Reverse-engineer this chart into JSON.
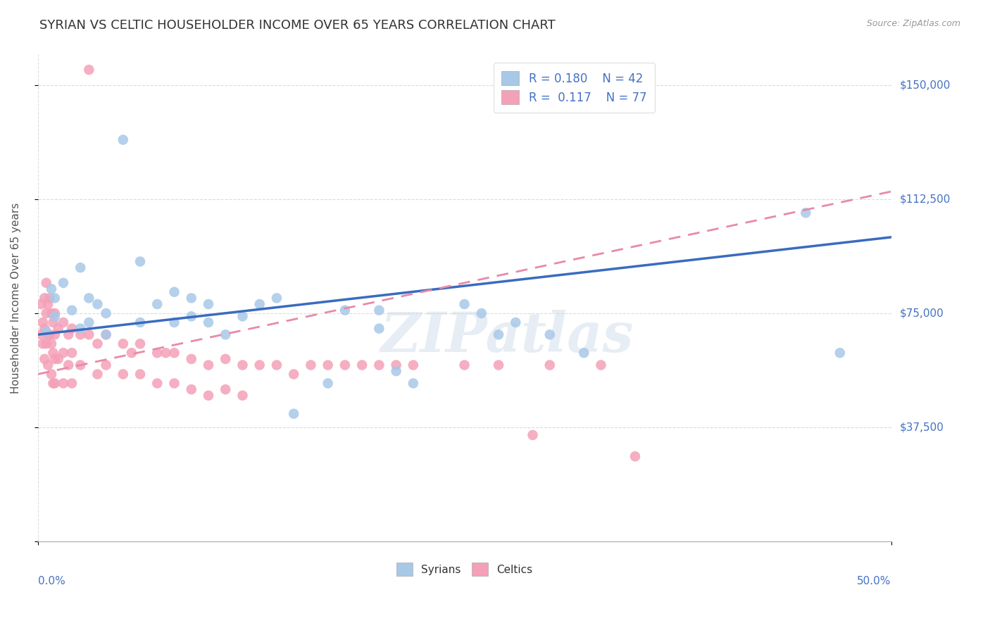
{
  "title": "SYRIAN VS CELTIC HOUSEHOLDER INCOME OVER 65 YEARS CORRELATION CHART",
  "source": "Source: ZipAtlas.com",
  "ylabel": "Householder Income Over 65 years",
  "legend_items": [
    {
      "label": "R = 0.180    N = 42",
      "color": "#a8c8e8"
    },
    {
      "label": "R =  0.117    N = 77",
      "color": "#f4a8c0"
    }
  ],
  "legend_bottom": [
    "Syrians",
    "Celtics"
  ],
  "yticks": [
    0,
    37500,
    75000,
    112500,
    150000
  ],
  "ytick_labels": [
    "",
    "$37,500",
    "$75,000",
    "$112,500",
    "$150,000"
  ],
  "xlim": [
    0,
    0.5
  ],
  "ylim": [
    0,
    160000
  ],
  "syrian_color": "#a8c8e8",
  "celtic_color": "#f4a0b8",
  "syrian_line_color": "#3a6bbf",
  "celtic_line_color": "#e88aa8",
  "watermark": "ZIPatlas",
  "syrian_line": [
    0.0,
    68000,
    0.5,
    100000
  ],
  "celtic_line": [
    0.0,
    55000,
    0.5,
    115000
  ],
  "syrian_points_x": [
    0.005,
    0.008,
    0.01,
    0.01,
    0.015,
    0.02,
    0.025,
    0.025,
    0.03,
    0.03,
    0.035,
    0.04,
    0.04,
    0.05,
    0.06,
    0.06,
    0.07,
    0.08,
    0.08,
    0.09,
    0.09,
    0.1,
    0.1,
    0.11,
    0.12,
    0.13,
    0.14,
    0.15,
    0.17,
    0.18,
    0.2,
    0.2,
    0.21,
    0.22,
    0.25,
    0.26,
    0.27,
    0.28,
    0.3,
    0.32,
    0.45,
    0.47
  ],
  "syrian_points_y": [
    69000,
    83000,
    74000,
    80000,
    85000,
    76000,
    90000,
    70000,
    80000,
    72000,
    78000,
    75000,
    68000,
    132000,
    92000,
    72000,
    78000,
    82000,
    72000,
    80000,
    74000,
    72000,
    78000,
    68000,
    74000,
    78000,
    80000,
    42000,
    52000,
    76000,
    76000,
    70000,
    56000,
    52000,
    78000,
    75000,
    68000,
    72000,
    68000,
    62000,
    108000,
    62000
  ],
  "celtic_points_x": [
    0.002,
    0.002,
    0.003,
    0.003,
    0.004,
    0.004,
    0.004,
    0.005,
    0.005,
    0.005,
    0.006,
    0.006,
    0.006,
    0.007,
    0.007,
    0.008,
    0.008,
    0.008,
    0.009,
    0.009,
    0.009,
    0.01,
    0.01,
    0.01,
    0.01,
    0.012,
    0.012,
    0.015,
    0.015,
    0.015,
    0.018,
    0.018,
    0.02,
    0.02,
    0.02,
    0.025,
    0.025,
    0.03,
    0.03,
    0.035,
    0.035,
    0.04,
    0.04,
    0.05,
    0.05,
    0.055,
    0.06,
    0.06,
    0.07,
    0.07,
    0.075,
    0.08,
    0.08,
    0.09,
    0.09,
    0.1,
    0.1,
    0.11,
    0.11,
    0.12,
    0.12,
    0.13,
    0.14,
    0.15,
    0.16,
    0.17,
    0.18,
    0.19,
    0.2,
    0.21,
    0.22,
    0.25,
    0.27,
    0.29,
    0.3,
    0.33,
    0.35
  ],
  "celtic_points_y": [
    68000,
    78000,
    72000,
    65000,
    80000,
    70000,
    60000,
    85000,
    75000,
    65000,
    78000,
    68000,
    58000,
    80000,
    68000,
    75000,
    65000,
    55000,
    72000,
    62000,
    52000,
    75000,
    68000,
    60000,
    52000,
    70000,
    60000,
    72000,
    62000,
    52000,
    68000,
    58000,
    70000,
    62000,
    52000,
    68000,
    58000,
    155000,
    68000,
    65000,
    55000,
    68000,
    58000,
    65000,
    55000,
    62000,
    65000,
    55000,
    62000,
    52000,
    62000,
    62000,
    52000,
    60000,
    50000,
    58000,
    48000,
    60000,
    50000,
    58000,
    48000,
    58000,
    58000,
    55000,
    58000,
    58000,
    58000,
    58000,
    58000,
    58000,
    58000,
    58000,
    58000,
    35000,
    58000,
    58000,
    28000
  ]
}
